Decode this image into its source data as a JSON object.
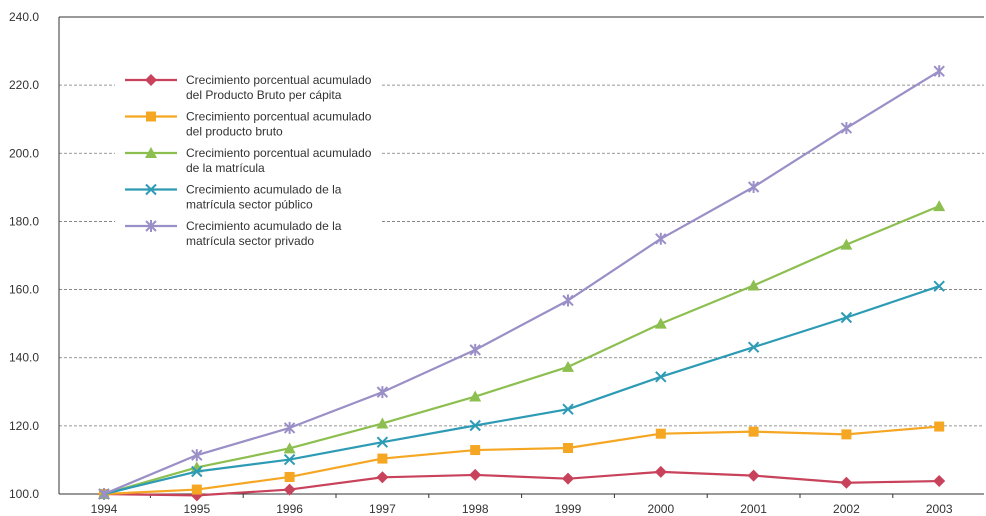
{
  "chart_data": {
    "type": "line",
    "title": "",
    "xlabel": "",
    "ylabel": "",
    "x": [
      "1994",
      "1995",
      "1996",
      "1997",
      "1998",
      "1999",
      "2000",
      "2001",
      "2002",
      "2003"
    ],
    "ylim": [
      100,
      240
    ],
    "yticks": [
      "100.0",
      "120.0",
      "140.0",
      "160.0",
      "180.0",
      "200.0",
      "220.0",
      "240.0"
    ],
    "grid": "horizontal dashed",
    "legend_position": "top-left",
    "series": [
      {
        "name": "Crecimiento porcentual acumulado del Producto Bruto per cápita",
        "legend_lines": [
          "Crecimiento porcentual acumulado",
          "del Producto Bruto per cápita"
        ],
        "color": "#c7425a",
        "marker": "diamond",
        "values": [
          100,
          99.6,
          101.3,
          104.9,
          105.6,
          104.5,
          106.5,
          105.4,
          103.3,
          103.8
        ]
      },
      {
        "name": "Crecimiento porcentual acumulado del producto bruto",
        "legend_lines": [
          "Crecimiento porcentual acumulado",
          "del producto bruto"
        ],
        "color": "#f5a623",
        "marker": "square",
        "values": [
          100,
          101.3,
          105.0,
          110.4,
          112.9,
          113.5,
          117.7,
          118.3,
          117.5,
          119.8
        ]
      },
      {
        "name": "Crecimiento porcentual acumulado de la matrícula",
        "legend_lines": [
          "Crecimiento porcentual acumulado",
          "de la matrícula"
        ],
        "color": "#8cbf4f",
        "marker": "triangle",
        "values": [
          100,
          107.8,
          113.4,
          120.7,
          128.6,
          137.3,
          150.0,
          161.2,
          173.2,
          184.5
        ]
      },
      {
        "name": "Crecimiento acumulado de la matrícula sector público",
        "legend_lines": [
          "Crecimiento acumulado de la",
          "matrícula sector público"
        ],
        "color": "#2e9bb5",
        "marker": "x",
        "values": [
          100,
          106.6,
          110.1,
          115.2,
          120.1,
          124.9,
          134.4,
          143.1,
          151.8,
          161.0
        ]
      },
      {
        "name": "Crecimiento acumulado de la matrícula sector privado",
        "legend_lines": [
          "Crecimiento acumulado de la",
          "matrícula sector privado"
        ],
        "color": "#9b8fc7",
        "marker": "star",
        "values": [
          100,
          111.4,
          119.4,
          129.9,
          142.3,
          156.8,
          174.9,
          190.1,
          207.4,
          224.1
        ]
      }
    ]
  }
}
